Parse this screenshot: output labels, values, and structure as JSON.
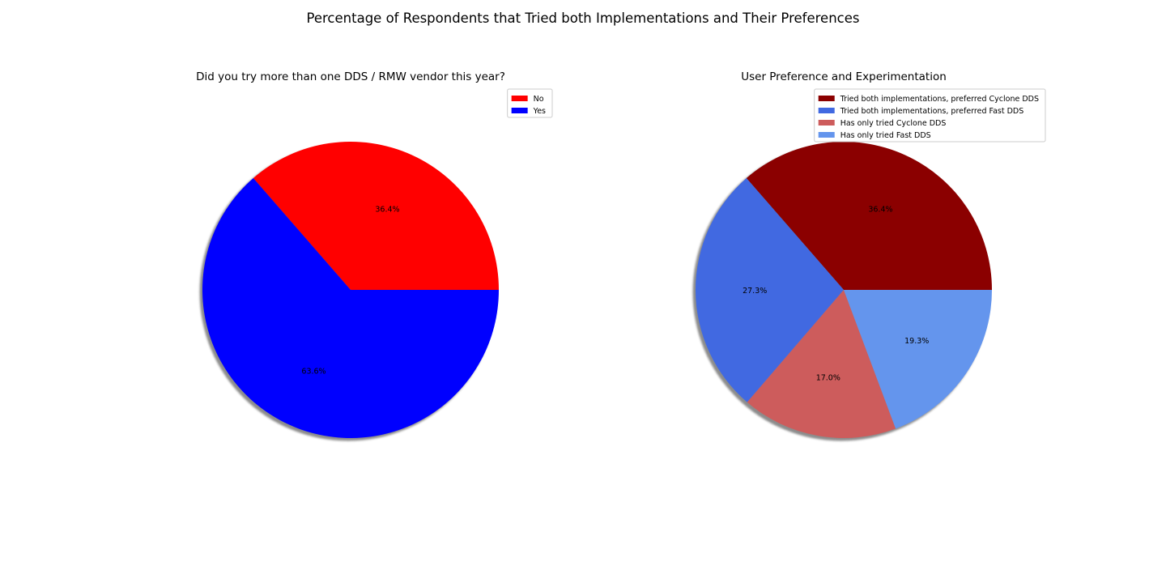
{
  "figure": {
    "title": "Percentage of Respondents that Tried both Implementations and Their Preferences"
  },
  "chart_data": [
    {
      "type": "pie",
      "title": "Did you try more than one DDS / RMW vendor this year?",
      "labels": [
        "No",
        "Yes"
      ],
      "values": [
        36.4,
        63.6
      ],
      "autopct": [
        "36.4%",
        "63.6%"
      ],
      "colors": [
        "#ff0000",
        "#0000ff"
      ],
      "start_angle_deg": 0,
      "shadow": true,
      "legend": {
        "entries": [
          "No",
          "Yes"
        ],
        "placement": "upper-right"
      }
    },
    {
      "type": "pie",
      "title": "User Preference and Experimentation",
      "labels": [
        "Tried both implementations, preferred Cyclone DDS",
        "Tried both implementations, preferred Fast DDS",
        "Has only tried Cyclone DDS",
        "Has only tried Fast DDS"
      ],
      "values": [
        36.4,
        27.3,
        17.0,
        19.3
      ],
      "autopct": [
        "36.4%",
        "27.3%",
        "17.0%",
        "19.3%"
      ],
      "colors": [
        "#8b0000",
        "#4169e1",
        "#cd5c5c",
        "#6495ed"
      ],
      "start_angle_deg": 0,
      "shadow": true,
      "legend": {
        "entries": [
          "Tried both implementations, preferred Cyclone DDS",
          "Tried both implementations, preferred Fast DDS",
          "Has only tried Cyclone DDS",
          "Has only tried Fast DDS"
        ],
        "placement": "upper-right"
      }
    }
  ]
}
